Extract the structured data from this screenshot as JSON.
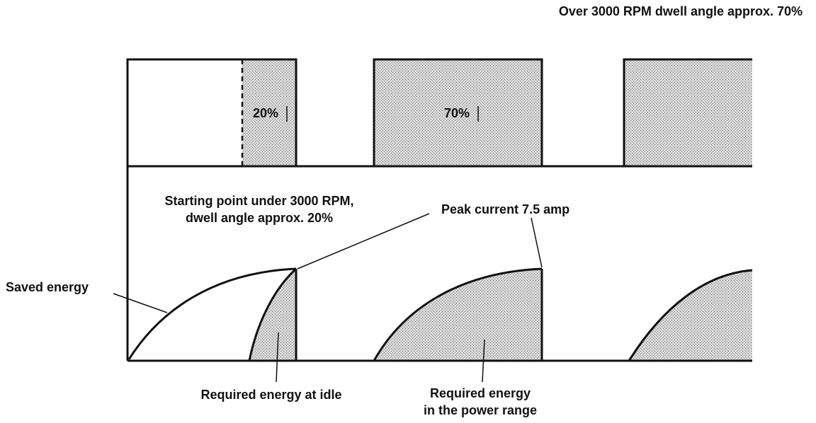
{
  "labels": {
    "title_over": "Over 3000 RPM dwell angle approx. 70%",
    "pct_20": "20%",
    "pct_70": "70%",
    "starting_point_line1": "Starting point under 3000 RPM,",
    "starting_point_line2": "dwell angle approx. 20%",
    "peak_current": "Peak current 7.5 amp",
    "saved_energy": "Saved energy",
    "required_idle": "Required energy at idle",
    "required_power_line1": "Required energy",
    "required_power_line2": "in the power range"
  },
  "colors": {
    "ink": "#111111",
    "shade": "#c8c8c8",
    "background": "#ffffff"
  }
}
